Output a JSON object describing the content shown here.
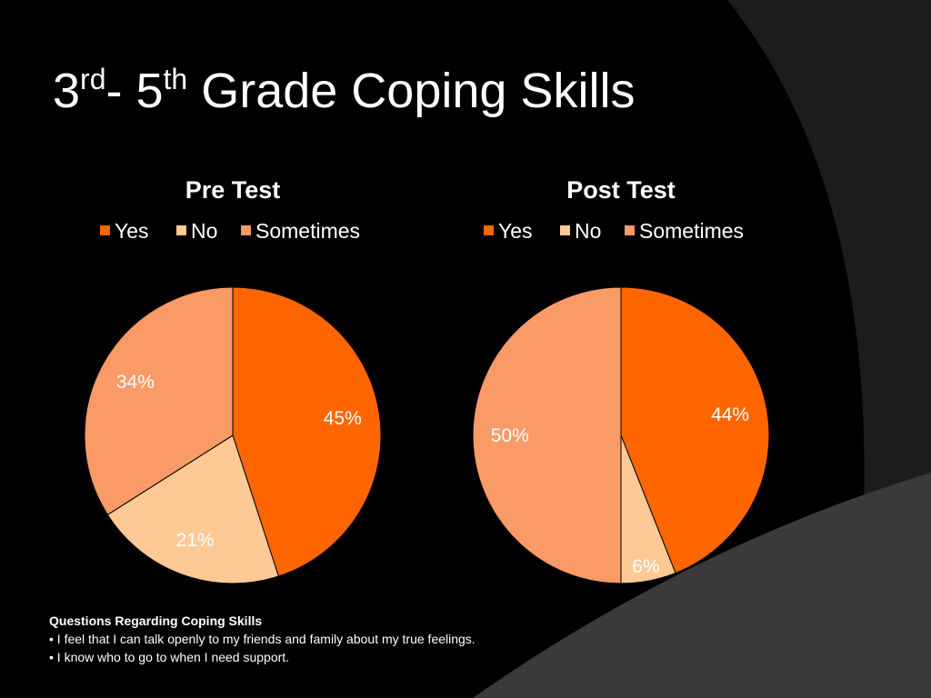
{
  "title_parts": [
    "3",
    "rd",
    "- 5",
    "th",
    " Grade Coping Skills"
  ],
  "chart_data": [
    {
      "type": "pie",
      "title": "Pre Test",
      "categories": [
        "Yes",
        "No",
        "Sometimes"
      ],
      "values": [
        45,
        21,
        34
      ],
      "value_labels": [
        "45%",
        "21%",
        "34%"
      ],
      "colors": [
        "#ff6600",
        "#fdc994",
        "#fa9a66"
      ]
    },
    {
      "type": "pie",
      "title": "Post Test",
      "categories": [
        "Yes",
        "No",
        "Sometimes"
      ],
      "values": [
        44,
        6,
        50
      ],
      "value_labels": [
        "44%",
        "6%",
        "50%"
      ],
      "colors": [
        "#ff6600",
        "#fdc994",
        "#fa9a66"
      ]
    }
  ],
  "notes": {
    "heading": "Questions Regarding Coping Skills",
    "items": [
      "• I feel that I can talk openly to my friends and family about my true feelings.",
      "• I know who to go to when I need support."
    ]
  }
}
